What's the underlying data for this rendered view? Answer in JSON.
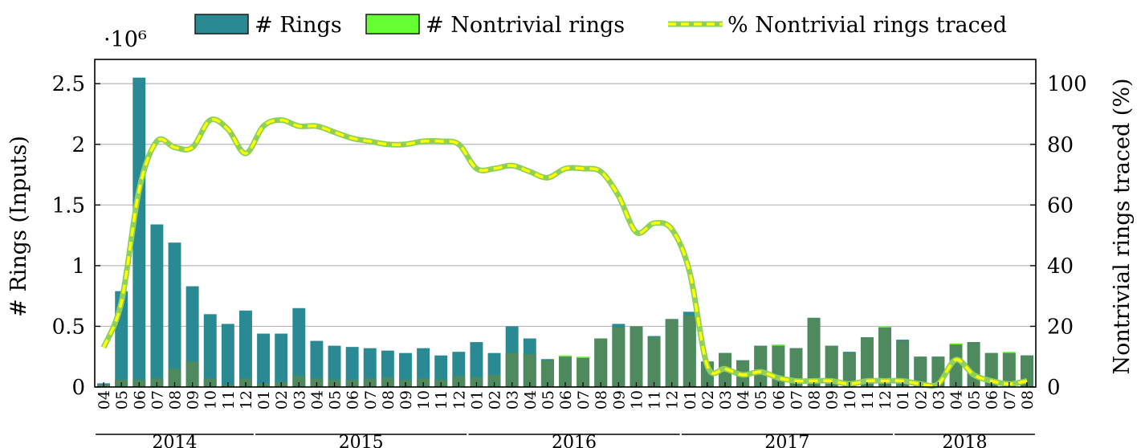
{
  "chart_data": {
    "type": "bar",
    "legend": {
      "position": "top",
      "entries": [
        "# Rings",
        "# Nontrivial rings",
        "% Nontrivial rings traced"
      ]
    },
    "left_axis": {
      "label": "# Rings (Inputs)",
      "multiplier": "·10⁶",
      "ylim": [
        0,
        2.7
      ],
      "ticks": [
        0,
        0.5,
        1,
        1.5,
        2,
        2.5
      ],
      "tick_labels": [
        "0",
        "0.5",
        "1",
        "1.5",
        "2",
        "2.5"
      ]
    },
    "right_axis": {
      "label": "Nontrivial rings traced (%)",
      "ylim": [
        0,
        108
      ],
      "ticks": [
        0,
        20,
        40,
        60,
        80,
        100
      ],
      "tick_labels": [
        "0",
        "20",
        "40",
        "60",
        "80",
        "100"
      ]
    },
    "grid": true,
    "colors": {
      "rings": "#2a8a93",
      "nontrivial": "#66ff33",
      "overlap": "#4f8a5e",
      "line_outer": "#8fd158",
      "line_dash": "#ffff00"
    },
    "categories": [
      "04",
      "05",
      "06",
      "07",
      "08",
      "09",
      "10",
      "11",
      "12",
      "01",
      "02",
      "03",
      "04",
      "05",
      "06",
      "07",
      "08",
      "09",
      "10",
      "11",
      "12",
      "01",
      "02",
      "03",
      "04",
      "05",
      "06",
      "07",
      "08",
      "09",
      "10",
      "11",
      "12",
      "01",
      "02",
      "03",
      "04",
      "05",
      "06",
      "07",
      "08",
      "09",
      "10",
      "11",
      "12",
      "01",
      "02",
      "03",
      "04",
      "05",
      "06",
      "07",
      "08"
    ],
    "years": [
      {
        "label": "2014",
        "start": 0,
        "end": 8
      },
      {
        "label": "2015",
        "start": 9,
        "end": 20
      },
      {
        "label": "2016",
        "start": 21,
        "end": 32
      },
      {
        "label": "2017",
        "start": 33,
        "end": 44
      },
      {
        "label": "2018",
        "start": 45,
        "end": 52
      }
    ],
    "series": [
      {
        "name": "# Rings",
        "axis": "left",
        "values": [
          0.03,
          0.79,
          2.55,
          1.34,
          1.19,
          0.83,
          0.6,
          0.52,
          0.63,
          0.44,
          0.44,
          0.65,
          0.38,
          0.34,
          0.33,
          0.32,
          0.3,
          0.28,
          0.32,
          0.26,
          0.29,
          0.37,
          0.28,
          0.5,
          0.4,
          0.23,
          0.25,
          0.24,
          0.4,
          0.52,
          0.5,
          0.42,
          0.56,
          0.62,
          0.21,
          0.28,
          0.22,
          0.34,
          0.34,
          0.32,
          0.57,
          0.34,
          0.29,
          0.41,
          0.49,
          0.39,
          0.25,
          0.25,
          0.35,
          0.37,
          0.28,
          0.28,
          0.26
        ]
      },
      {
        "name": "# Nontrivial rings",
        "axis": "left",
        "values": [
          0.02,
          0.06,
          0.06,
          0.07,
          0.15,
          0.21,
          0.07,
          0.02,
          0.07,
          0.03,
          0.04,
          0.09,
          0.07,
          0.06,
          0.06,
          0.07,
          0.08,
          0.06,
          0.07,
          0.06,
          0.09,
          0.08,
          0.1,
          0.28,
          0.27,
          0.22,
          0.26,
          0.25,
          0.4,
          0.49,
          0.5,
          0.41,
          0.56,
          0.59,
          0.21,
          0.28,
          0.22,
          0.34,
          0.35,
          0.32,
          0.57,
          0.34,
          0.28,
          0.41,
          0.5,
          0.38,
          0.25,
          0.25,
          0.36,
          0.37,
          0.28,
          0.29,
          0.26
        ]
      },
      {
        "name": "% Nontrivial rings traced",
        "axis": "right",
        "values": [
          13,
          28,
          65,
          81,
          79,
          79,
          88,
          85,
          77,
          86,
          88,
          86,
          86,
          84,
          82,
          81,
          80,
          80,
          81,
          81,
          80,
          72,
          72,
          73,
          71,
          69,
          72,
          72,
          71,
          63,
          51,
          54,
          52,
          38,
          7,
          6,
          4,
          5,
          3,
          2,
          2,
          2,
          1,
          2,
          2,
          2,
          1,
          1,
          9,
          4,
          2,
          1,
          2
        ]
      }
    ]
  }
}
